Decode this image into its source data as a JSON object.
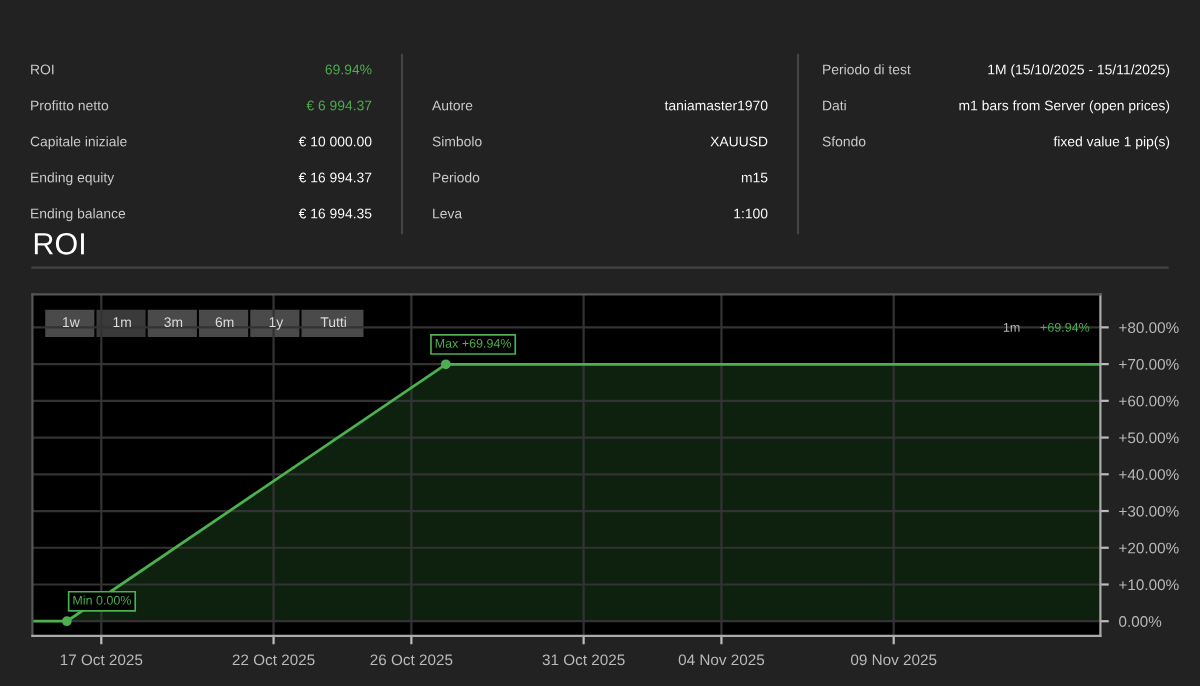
{
  "chart_data": {
    "type": "area",
    "title": "ROI",
    "x": [
      "2025-10-15",
      "2025-10-16",
      "2025-10-27",
      "2025-11-15"
    ],
    "series": [
      {
        "color": "#4caf50",
        "values": [
          0,
          0,
          69.94,
          69.94
        ]
      }
    ],
    "xlim": [
      "2025-10-15",
      "2025-11-15"
    ],
    "xticks": [
      {
        "value": "2025-10-17",
        "label": "17 Oct 2025"
      },
      {
        "value": "2025-10-22",
        "label": "22 Oct 2025"
      },
      {
        "value": "2025-10-26",
        "label": "26 Oct 2025"
      },
      {
        "value": "2025-10-31",
        "label": "31 Oct 2025"
      },
      {
        "value": "2025-11-04",
        "label": "04 Nov 2025"
      },
      {
        "value": "2025-11-09",
        "label": "09 Nov 2025"
      }
    ],
    "ylim": [
      -4,
      89
    ],
    "yticks": [
      {
        "value": 0,
        "label": "0.00%"
      },
      {
        "value": 10,
        "label": "+10.00%"
      },
      {
        "value": 20,
        "label": "+20.00%"
      },
      {
        "value": 30,
        "label": "+30.00%"
      },
      {
        "value": 40,
        "label": "+40.00%"
      },
      {
        "value": 50,
        "label": "+50.00%"
      },
      {
        "value": 60,
        "label": "+60.00%"
      },
      {
        "value": 70,
        "label": "+70.00%"
      },
      {
        "value": 80,
        "label": "+80.00%"
      }
    ],
    "grid": true,
    "marker": "none",
    "line_style": "solid",
    "annotations": [
      {
        "text": "Min 0.00%",
        "x": "2025-10-16",
        "y": 0
      },
      {
        "text": "Max +69.94%",
        "x": "2025-10-27",
        "y": 69.94
      },
      "1w",
      "1m",
      "3m",
      "6m",
      "1y",
      "Tutti",
      "1m",
      "+69.94%",
      "ROI",
      "69.94%",
      "Profitto netto",
      "€ 6 994.37",
      "Capitale iniziale",
      "€ 10 000.00",
      "Ending equity",
      "€ 16 994.37",
      "Ending balance",
      "€ 16 994.35",
      "Autore",
      "taniamaster1970",
      "Simbolo",
      "XAUUSD",
      "Periodo",
      "m15",
      "Leva",
      "1:100",
      "Periodo di test",
      "1M (15/10/2025 - 15/11/2025)",
      "Dati",
      "m1 bars from Server (open prices)",
      "Sfondo",
      "fixed value 1 pip(s)"
    ]
  }
}
